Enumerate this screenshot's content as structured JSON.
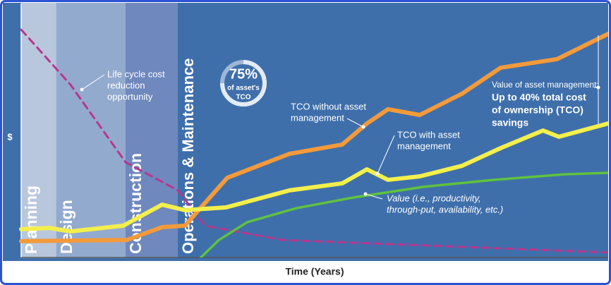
{
  "chart_data": {
    "type": "line",
    "y_label": "$",
    "x_label": "Time (Years)",
    "xlim": [
      0,
      100
    ],
    "ylim": [
      0,
      100
    ],
    "phases": [
      {
        "label": "Planning",
        "start": 0,
        "end": 6,
        "color": "#b9c7dd"
      },
      {
        "label": "Design",
        "start": 6,
        "end": 17.8,
        "color": "#93aacf"
      },
      {
        "label": "Construction",
        "start": 17.8,
        "end": 26.7,
        "color": "#6f88bd"
      },
      {
        "label": "Operations & Maintenance",
        "start": 26.7,
        "end": 100,
        "color": "#3f6fab"
      }
    ],
    "series": [
      {
        "color": "#b8378d",
        "dashed": true,
        "x": [
          0,
          8.4,
          17.8,
          26.7,
          31.3,
          44.5,
          100
        ],
        "values": [
          91,
          69,
          38,
          26.8,
          12.7,
          7,
          2
        ]
      },
      {
        "color": "#5fc23f",
        "dashed": false,
        "x": [
          30.6,
          33.7,
          38.5,
          46.9,
          56.5,
          68.5,
          80.5,
          92.5,
          100
        ],
        "values": [
          0,
          7,
          14.1,
          19.7,
          23.9,
          28.2,
          31,
          33.2,
          33.8
        ]
      },
      {
        "color": "#f39a3a",
        "dashed": false,
        "x": [
          0,
          18,
          24,
          27.9,
          30,
          35.1,
          45.7,
          54.7,
          58.9,
          62.5,
          67.9,
          75.1,
          81.7,
          91.3,
          100
        ],
        "values": [
          6.5,
          7,
          12.1,
          12.7,
          18.3,
          31.8,
          41.4,
          45.1,
          53.5,
          59.2,
          56.9,
          65.4,
          75.8,
          79.2,
          89.3
        ]
      },
      {
        "color": "#f4ef4b",
        "dashed": false,
        "x": [
          0,
          4.8,
          8.4,
          17.4,
          24,
          27.9,
          34.9,
          45.7,
          54.7,
          58.9,
          62.5,
          67.9,
          75.1,
          81.7,
          88.9,
          91.6,
          100
        ],
        "values": [
          11.3,
          11.8,
          10.4,
          12.7,
          21.1,
          18.9,
          20,
          26.8,
          29.6,
          35.2,
          31,
          32.4,
          36.6,
          43.7,
          50.7,
          48.2,
          53.5
        ]
      }
    ],
    "annotations": [
      {
        "lines": [
          "Life cycle cost",
          "reduction",
          "opportunity"
        ],
        "italic": false
      },
      {
        "lines": [
          "TCO without asset",
          "management"
        ],
        "italic": false
      },
      {
        "lines": [
          "TCO with asset",
          "management"
        ],
        "italic": false
      },
      {
        "lines": [
          "Value (i.e., productivity,",
          "through-put, availability, etc.)"
        ],
        "italic": true
      }
    ],
    "badge": {
      "value": 75,
      "value_label": "75%",
      "lines": [
        "of asset's",
        "TCO"
      ]
    },
    "callout": {
      "lines": [
        "Value of asset management:"
      ],
      "bold_lines": [
        "Up to 40% total cost",
        "of ownership (TCO)",
        "savings"
      ]
    }
  }
}
